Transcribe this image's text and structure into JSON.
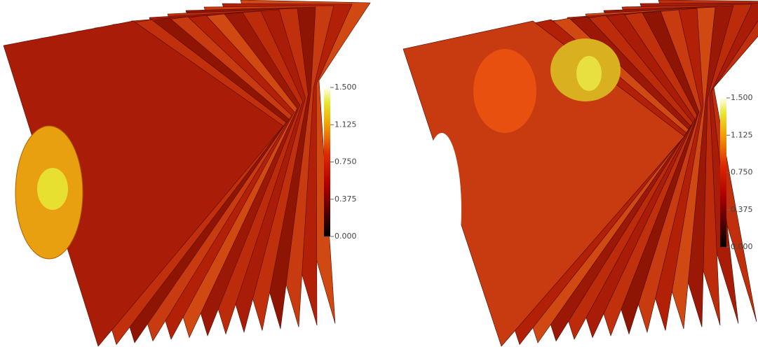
{
  "panels": [
    {
      "colorbar": {
        "range": [
          0,
          1.5
        ],
        "ticks": [
          {
            "value": 0,
            "label": "0.000"
          },
          {
            "value": 0.375,
            "label": "0.375"
          },
          {
            "value": 0.75,
            "label": "0.750"
          },
          {
            "value": 1.125,
            "label": "1.125"
          },
          {
            "value": 1.5,
            "label": "1.500"
          }
        ]
      }
    },
    {
      "colorbar": {
        "range": [
          0,
          1.5
        ],
        "ticks": [
          {
            "value": 0,
            "label": "0.000"
          },
          {
            "value": 0.375,
            "label": "0.375"
          },
          {
            "value": 0.75,
            "label": "0.750"
          },
          {
            "value": 1.125,
            "label": "1.125"
          },
          {
            "value": 1.5,
            "label": "1.500"
          }
        ]
      }
    }
  ]
}
